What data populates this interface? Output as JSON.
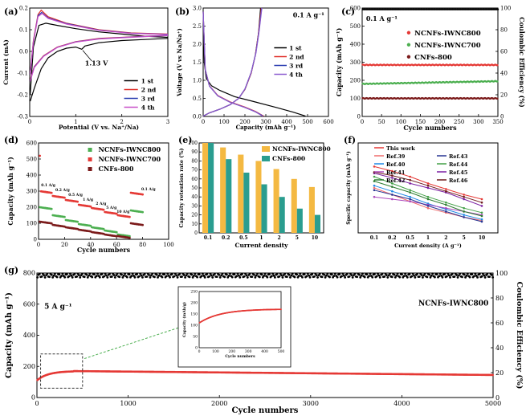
{
  "chart_data": [
    {
      "panel": "(a)",
      "type": "line",
      "xlabel": "Potential (V vs. Na⁺/Na)",
      "ylabel": "Current (mA)",
      "xlim": [
        0,
        3
      ],
      "ylim": [
        -0.3,
        0.2
      ],
      "xticks": [
        0,
        1,
        2,
        3
      ],
      "yticks": [
        -0.3,
        -0.2,
        -0.1,
        0.0,
        0.1,
        0.2
      ],
      "annotation": "1.13 V",
      "legend_position": "right",
      "series": [
        {
          "name": "1 st",
          "color": "#000000",
          "cathodic": [
            [
              3,
              0.06
            ],
            [
              2.5,
              0.055
            ],
            [
              2,
              0.05
            ],
            [
              1.5,
              0.04
            ],
            [
              1.2,
              0.025
            ],
            [
              1.13,
              0.01
            ],
            [
              1.0,
              0.02
            ],
            [
              0.8,
              0.015
            ],
            [
              0.6,
              0.0
            ],
            [
              0.4,
              -0.03
            ],
            [
              0.25,
              -0.08
            ],
            [
              0.1,
              -0.17
            ],
            [
              0.01,
              -0.23
            ]
          ],
          "anodic": [
            [
              0.01,
              -0.2
            ],
            [
              0.08,
              0.02
            ],
            [
              0.2,
              0.12
            ],
            [
              0.35,
              0.13
            ],
            [
              0.6,
              0.12
            ],
            [
              1.0,
              0.105
            ],
            [
              1.5,
              0.09
            ],
            [
              2.0,
              0.08
            ],
            [
              2.5,
              0.07
            ],
            [
              3,
              0.065
            ]
          ]
        },
        {
          "name": "2 nd",
          "color": "#e0302a",
          "cathodic": [
            [
              3,
              0.075
            ],
            [
              2.5,
              0.07
            ],
            [
              2,
              0.065
            ],
            [
              1.5,
              0.06
            ],
            [
              1.0,
              0.045
            ],
            [
              0.6,
              0.02
            ],
            [
              0.3,
              -0.02
            ],
            [
              0.1,
              -0.07
            ],
            [
              0.01,
              -0.13
            ]
          ],
          "anodic": [
            [
              0.01,
              -0.1
            ],
            [
              0.08,
              0.05
            ],
            [
              0.18,
              0.17
            ],
            [
              0.25,
              0.19
            ],
            [
              0.4,
              0.16
            ],
            [
              0.8,
              0.13
            ],
            [
              1.5,
              0.1
            ],
            [
              2.2,
              0.085
            ],
            [
              3,
              0.08
            ]
          ]
        },
        {
          "name": "3 rd",
          "color": "#2a3db0",
          "cathodic": [
            [
              3,
              0.074
            ],
            [
              2.5,
              0.069
            ],
            [
              2,
              0.064
            ],
            [
              1.5,
              0.058
            ],
            [
              1.0,
              0.044
            ],
            [
              0.6,
              0.019
            ],
            [
              0.3,
              -0.022
            ],
            [
              0.1,
              -0.072
            ],
            [
              0.01,
              -0.135
            ]
          ],
          "anodic": [
            [
              0.01,
              -0.105
            ],
            [
              0.08,
              0.045
            ],
            [
              0.18,
              0.165
            ],
            [
              0.26,
              0.18
            ],
            [
              0.4,
              0.155
            ],
            [
              0.8,
              0.128
            ],
            [
              1.5,
              0.098
            ],
            [
              2.2,
              0.084
            ],
            [
              3,
              0.079
            ]
          ]
        },
        {
          "name": "4 th",
          "color": "#c84fc8",
          "cathodic": [
            [
              3,
              0.073
            ],
            [
              2.5,
              0.068
            ],
            [
              2,
              0.063
            ],
            [
              1.5,
              0.057
            ],
            [
              1.0,
              0.043
            ],
            [
              0.6,
              0.018
            ],
            [
              0.3,
              -0.023
            ],
            [
              0.1,
              -0.074
            ],
            [
              0.01,
              -0.138
            ]
          ],
          "anodic": [
            [
              0.01,
              -0.108
            ],
            [
              0.08,
              0.043
            ],
            [
              0.18,
              0.16
            ],
            [
              0.27,
              0.175
            ],
            [
              0.4,
              0.152
            ],
            [
              0.8,
              0.126
            ],
            [
              1.5,
              0.097
            ],
            [
              2.2,
              0.083
            ],
            [
              3,
              0.078
            ]
          ]
        }
      ]
    },
    {
      "panel": "(b)",
      "type": "line",
      "xlabel": "Capacity (mAh g⁻¹)",
      "ylabel": "Voltage (V vs Na/Na⁺)",
      "xlim": [
        0,
        600
      ],
      "ylim": [
        0,
        3
      ],
      "xticks": [
        0,
        100,
        200,
        300,
        400,
        500,
        600
      ],
      "yticks": [
        0,
        0.5,
        1.0,
        1.5,
        2.0,
        2.5,
        3.0
      ],
      "annotation": "0.1 A g⁻¹",
      "legend_position": "right",
      "series": [
        {
          "name": "1 st",
          "color": "#000000",
          "discharge": [
            [
              0,
              2.9
            ],
            [
              5,
              1.5
            ],
            [
              15,
              1.05
            ],
            [
              40,
              0.85
            ],
            [
              80,
              0.72
            ],
            [
              150,
              0.55
            ],
            [
              250,
              0.4
            ],
            [
              350,
              0.25
            ],
            [
              430,
              0.12
            ],
            [
              480,
              0.03
            ],
            [
              490,
              0.01
            ]
          ],
          "charge": [
            [
              0,
              0.01
            ],
            [
              30,
              0.1
            ],
            [
              80,
              0.2
            ],
            [
              130,
              0.33
            ],
            [
              170,
              0.5
            ],
            [
              200,
              0.75
            ],
            [
              230,
              1.2
            ],
            [
              250,
              1.7
            ],
            [
              265,
              2.3
            ],
            [
              275,
              3.0
            ]
          ]
        },
        {
          "name": "2 nd",
          "color": "#e0302a",
          "discharge": [
            [
              0,
              2.9
            ],
            [
              10,
              1.3
            ],
            [
              30,
              0.85
            ],
            [
              70,
              0.58
            ],
            [
              130,
              0.4
            ],
            [
              200,
              0.26
            ],
            [
              250,
              0.14
            ],
            [
              280,
              0.04
            ],
            [
              290,
              0.01
            ]
          ],
          "charge": [
            [
              0,
              0.01
            ],
            [
              30,
              0.1
            ],
            [
              80,
              0.2
            ],
            [
              130,
              0.33
            ],
            [
              170,
              0.5
            ],
            [
              200,
              0.75
            ],
            [
              230,
              1.2
            ],
            [
              250,
              1.7
            ],
            [
              265,
              2.3
            ],
            [
              278,
              3.0
            ]
          ]
        },
        {
          "name": "3 rd",
          "color": "#2a3db0",
          "discharge": [
            [
              0,
              2.9
            ],
            [
              10,
              1.3
            ],
            [
              30,
              0.84
            ],
            [
              70,
              0.57
            ],
            [
              130,
              0.39
            ],
            [
              200,
              0.25
            ],
            [
              250,
              0.13
            ],
            [
              278,
              0.04
            ],
            [
              286,
              0.01
            ]
          ],
          "charge": [
            [
              0,
              0.01
            ],
            [
              30,
              0.1
            ],
            [
              80,
              0.2
            ],
            [
              130,
              0.33
            ],
            [
              170,
              0.5
            ],
            [
              200,
              0.76
            ],
            [
              230,
              1.22
            ],
            [
              252,
              1.75
            ],
            [
              267,
              2.35
            ],
            [
              280,
              3.0
            ]
          ]
        },
        {
          "name": "4 th",
          "color": "#8a5acf",
          "discharge": [
            [
              0,
              2.9
            ],
            [
              10,
              1.3
            ],
            [
              30,
              0.84
            ],
            [
              70,
              0.57
            ],
            [
              130,
              0.39
            ],
            [
              200,
              0.25
            ],
            [
              250,
              0.13
            ],
            [
              276,
              0.04
            ],
            [
              284,
              0.01
            ]
          ],
          "charge": [
            [
              0,
              0.01
            ],
            [
              30,
              0.1
            ],
            [
              80,
              0.2
            ],
            [
              130,
              0.33
            ],
            [
              170,
              0.5
            ],
            [
              200,
              0.76
            ],
            [
              230,
              1.22
            ],
            [
              253,
              1.76
            ],
            [
              268,
              2.36
            ],
            [
              281,
              3.0
            ]
          ]
        }
      ]
    },
    {
      "panel": "(c)",
      "type": "scatter",
      "xlabel": "Cycle numbers",
      "ylabel": "Capacity (mAh g⁻¹)",
      "y2label": "Coulombic Efficiency (%)",
      "xlim": [
        0,
        350
      ],
      "ylim": [
        0,
        600
      ],
      "y2lim": [
        0,
        100
      ],
      "xticks": [
        0,
        50,
        100,
        150,
        200,
        250,
        300,
        350
      ],
      "yticks": [
        0,
        100,
        200,
        300,
        400,
        500,
        600
      ],
      "y2ticks": [
        0,
        20,
        40,
        60,
        80,
        100
      ],
      "annotation": "0.1 A g⁻¹",
      "legend_position": "top-right",
      "series": [
        {
          "name": "NCNFs-IWNC800",
          "color": "#e53935",
          "capacity": 285,
          "ce": 98
        },
        {
          "name": "NCNFs-IWNC700",
          "color": "#4caf50",
          "capacity_start": 180,
          "capacity_end": 195,
          "ce": 98
        },
        {
          "name": "CNFs-800",
          "color": "#7b1a1a",
          "capacity": 100,
          "ce": 98
        }
      ]
    },
    {
      "panel": "(d)",
      "type": "scatter",
      "xlabel": "Cycle numbers",
      "ylabel": "Capacity (mAh g⁻¹)",
      "xlim": [
        0,
        100
      ],
      "ylim": [
        0,
        600
      ],
      "xticks": [
        0,
        20,
        40,
        60,
        80,
        100
      ],
      "yticks": [
        0,
        100,
        200,
        300,
        400,
        500,
        600
      ],
      "legend_position": "top-right",
      "rate_labels": [
        "0.1 A/g",
        "0.2 A/g",
        "0.5 A/g",
        "1 A/g",
        "2 A/g",
        "5 A/g",
        "10 A/g",
        "0.1 A/g"
      ],
      "series": [
        {
          "name": "NCNFs-IWNC800",
          "color": "#4caf50",
          "steps": [
            200,
            150,
            120,
            95,
            75,
            55,
            30,
            180
          ]
        },
        {
          "name": "NCNFs-IWNC700",
          "color": "#e53935",
          "steps": [
            300,
            270,
            245,
            215,
            195,
            170,
            150,
            290
          ]
        },
        {
          "name": "CNFs-800",
          "color": "#7b1a1a",
          "steps": [
            110,
            90,
            75,
            60,
            45,
            30,
            20,
            100
          ]
        }
      ]
    },
    {
      "panel": "(e)",
      "type": "bar",
      "xlabel": "Current density",
      "ylabel": "Capacity retention rate (%)",
      "ylim": [
        0,
        100
      ],
      "yticks": [
        0,
        10,
        20,
        30,
        40,
        50,
        60,
        70,
        80,
        90,
        100
      ],
      "categories": [
        "0.1",
        "0.2",
        "0.5",
        "1",
        "2",
        "5",
        "10"
      ],
      "legend_position": "top-right",
      "series": [
        {
          "name": "NCNFs-IWNC800",
          "color": "#f4b942",
          "values": [
            100,
            95,
            87,
            80,
            71,
            60,
            51
          ]
        },
        {
          "name": "CNFs-800",
          "color": "#2a9d8f",
          "values": [
            100,
            82,
            67,
            54,
            40,
            27,
            20
          ]
        }
      ]
    },
    {
      "panel": "(f)",
      "type": "line",
      "xlabel": "Current density (A g⁻¹)",
      "ylabel": "Specific capacity (mAh g⁻¹)",
      "categories": [
        "0.1",
        "0.2",
        "0.5",
        "1",
        "2",
        "5",
        "10"
      ],
      "ylim": [
        0,
        400
      ],
      "legend_position": "top",
      "series": [
        {
          "name": "This work",
          "color": "#e53935",
          "values": [
            295,
            275,
            250,
            220,
            195,
            170,
            150
          ]
        },
        {
          "name": "Ref.39",
          "color": "#ef6c6c",
          "values": [
            200,
            170,
            140,
            110,
            90,
            70,
            55
          ]
        },
        {
          "name": "Ref.40",
          "color": "#1e88e5",
          "values": [
            210,
            185,
            160,
            130,
            105,
            80,
            60
          ]
        },
        {
          "name": "Ref.41",
          "color": "#ab47bc",
          "values": [
            160,
            150,
            140,
            125,
            110,
            95,
            80
          ]
        },
        {
          "name": "Ref.42",
          "color": "#2e7d32",
          "values": [
            230,
            205,
            180,
            150,
            125,
            95,
            75
          ]
        },
        {
          "name": "Ref.43",
          "color": "#283593",
          "values": [
            190,
            170,
            150,
            120,
            95,
            70,
            50
          ]
        },
        {
          "name": "Ref.44",
          "color": "#43a047",
          "values": [
            250,
            220,
            190,
            160,
            135,
            110,
            90
          ]
        },
        {
          "name": "Ref.45",
          "color": "#7b1fa2",
          "values": [
            265,
            245,
            220,
            200,
            180,
            150,
            120
          ]
        },
        {
          "name": "Ref.46",
          "color": "#6d1b1b",
          "values": [
            270,
            255,
            235,
            210,
            185,
            160,
            135
          ]
        }
      ]
    },
    {
      "panel": "(g)",
      "type": "scatter",
      "xlabel": "Cycle numbers",
      "ylabel": "Capacity (mAh g⁻¹)",
      "y2label": "Coulombic Efficiency (%)",
      "xlim": [
        0,
        5000
      ],
      "ylim": [
        0,
        800
      ],
      "y2lim": [
        0,
        100
      ],
      "xticks": [
        0,
        1000,
        2000,
        3000,
        4000,
        5000
      ],
      "yticks": [
        0,
        200,
        400,
        600,
        800
      ],
      "y2ticks": [
        0,
        20,
        40,
        60,
        80,
        100
      ],
      "annotation": "5 A g⁻¹",
      "series": [
        {
          "name": "NCNFs-IWNC800",
          "color": "#e53935",
          "capacity_start": 110,
          "capacity_peak": 170,
          "capacity_end": 145,
          "ce": 100
        }
      ],
      "inset": {
        "xlabel": "Cycle numbers",
        "ylabel": "Capacity (mAh/g)",
        "xlim": [
          0,
          500
        ],
        "ylim": [
          0,
          250
        ],
        "xticks": [
          0,
          100,
          200,
          300,
          400,
          500
        ],
        "yticks": [
          0,
          50,
          100,
          150,
          200,
          250
        ]
      }
    }
  ]
}
